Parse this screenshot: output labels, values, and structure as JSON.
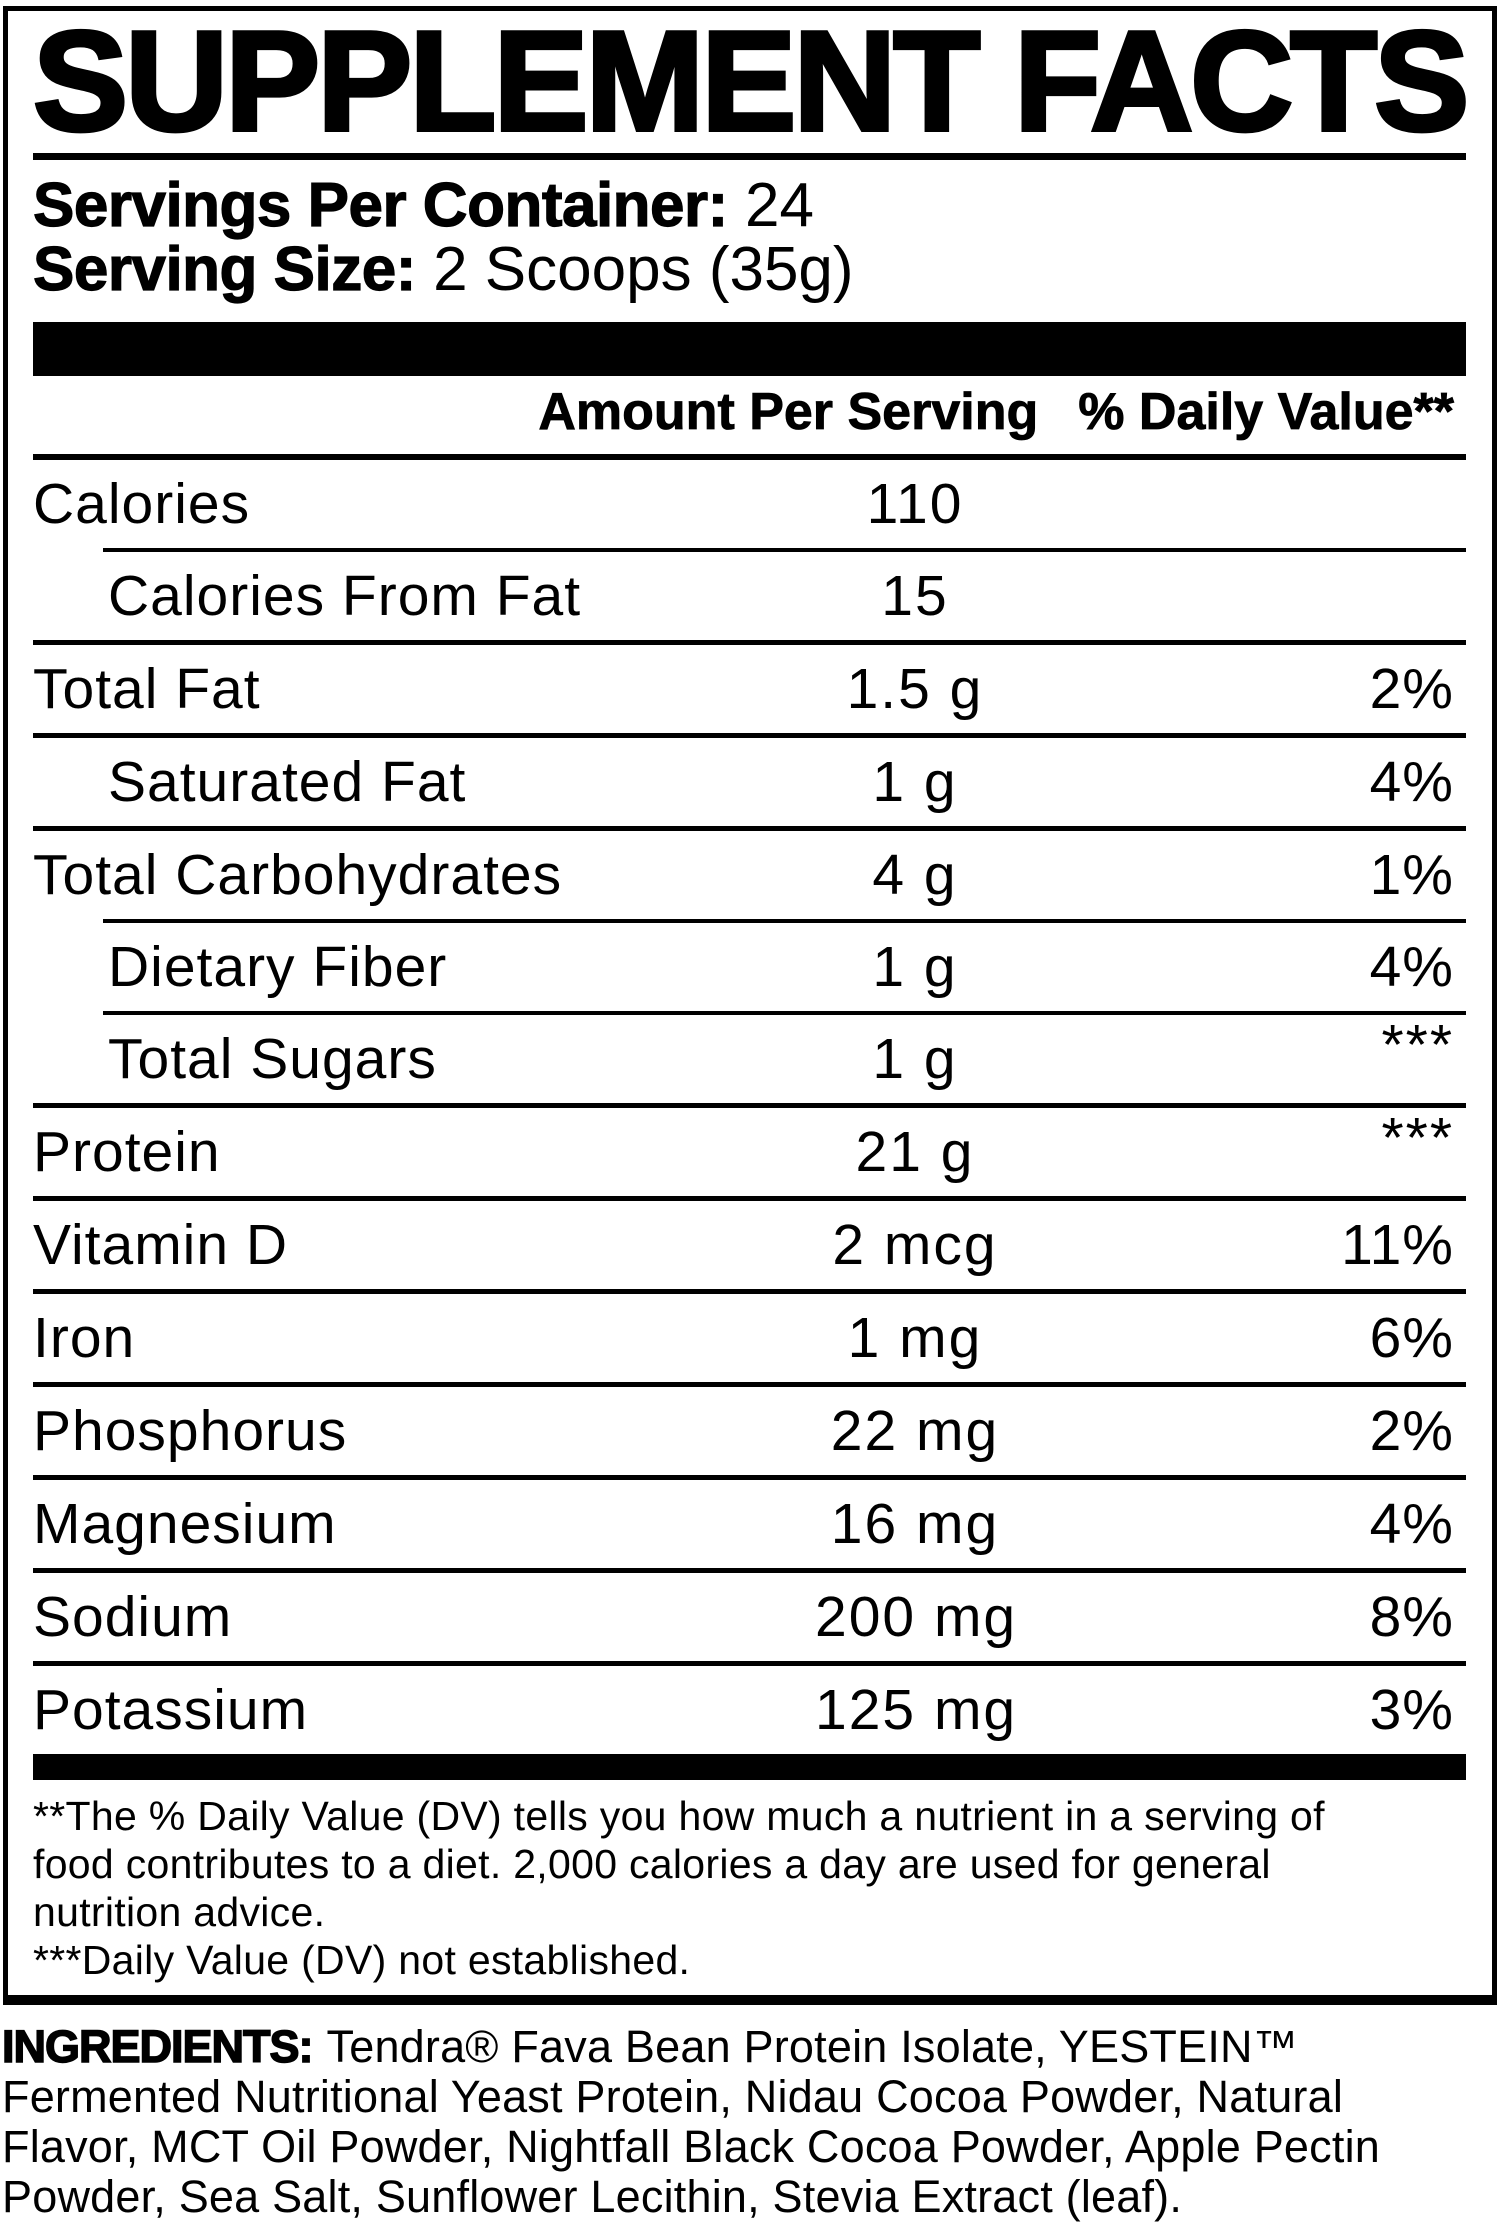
{
  "panel": {
    "title": "SUPPLEMENT FACTS",
    "servings_per_container": {
      "label": "Servings Per Container:",
      "value": "24"
    },
    "serving_size": {
      "label": "Serving Size:",
      "value": "2 Scoops (35g)"
    }
  },
  "table": {
    "headers": {
      "amount": "Amount Per Serving",
      "daily_value": "% Daily Value**"
    },
    "rows": [
      {
        "name": "Calories",
        "amount": "110",
        "dv": "",
        "indent": false,
        "sep": "header"
      },
      {
        "name": "Calories From Fat",
        "amount": "15",
        "dv": "",
        "indent": true,
        "sep": "indent"
      },
      {
        "name": "Total Fat",
        "amount": "1.5 g",
        "dv": "2%",
        "indent": false,
        "sep": "full"
      },
      {
        "name": "Saturated Fat",
        "amount": "1 g",
        "dv": "4%",
        "indent": true,
        "sep": "full"
      },
      {
        "name": "Total Carbohydrates",
        "amount": "4 g",
        "dv": "1%",
        "indent": false,
        "sep": "full"
      },
      {
        "name": "Dietary Fiber",
        "amount": "1 g",
        "dv": "4%",
        "indent": true,
        "sep": "indent"
      },
      {
        "name": "Total Sugars",
        "amount": "1 g",
        "dv": "***",
        "indent": true,
        "sep": "indent"
      },
      {
        "name": "Protein",
        "amount": "21 g",
        "dv": "***",
        "indent": false,
        "sep": "full"
      },
      {
        "name": "Vitamin D",
        "amount": "2 mcg",
        "dv": "11%",
        "indent": false,
        "sep": "full"
      },
      {
        "name": "Iron",
        "amount": "1 mg",
        "dv": "6%",
        "indent": false,
        "sep": "full"
      },
      {
        "name": "Phosphorus",
        "amount": "22 mg",
        "dv": "2%",
        "indent": false,
        "sep": "full"
      },
      {
        "name": "Magnesium",
        "amount": "16 mg",
        "dv": "4%",
        "indent": false,
        "sep": "full"
      },
      {
        "name": "Sodium",
        "amount": "200 mg",
        "dv": "8%",
        "indent": false,
        "sep": "full"
      },
      {
        "name": "Potassium",
        "amount": "125 mg",
        "dv": "3%",
        "indent": false,
        "sep": "full"
      }
    ]
  },
  "footnotes": {
    "daily_value_note_lines": [
      "**The % Daily Value (DV) tells you how much a nutrient in a serving of",
      "food contributes to a diet. 2,000 calories a day are used for general",
      "nutrition advice."
    ],
    "not_established": "***Daily Value (DV) not established."
  },
  "ingredients": {
    "label": "INGREDIENTS:",
    "lines": [
      "Tendra® Fava Bean Protein Isolate, YESTEIN™",
      "Fermented Nutritional Yeast Protein, Nidau Cocoa Powder, Natural",
      "Flavor, MCT Oil Powder, Nightfall Black Cocoa Powder, Apple Pectin",
      "Powder, Sea Salt, Sunflower Lecithin, Stevia Extract (leaf)."
    ]
  },
  "colors": {
    "ink": "#000000",
    "background": "#ffffff"
  }
}
